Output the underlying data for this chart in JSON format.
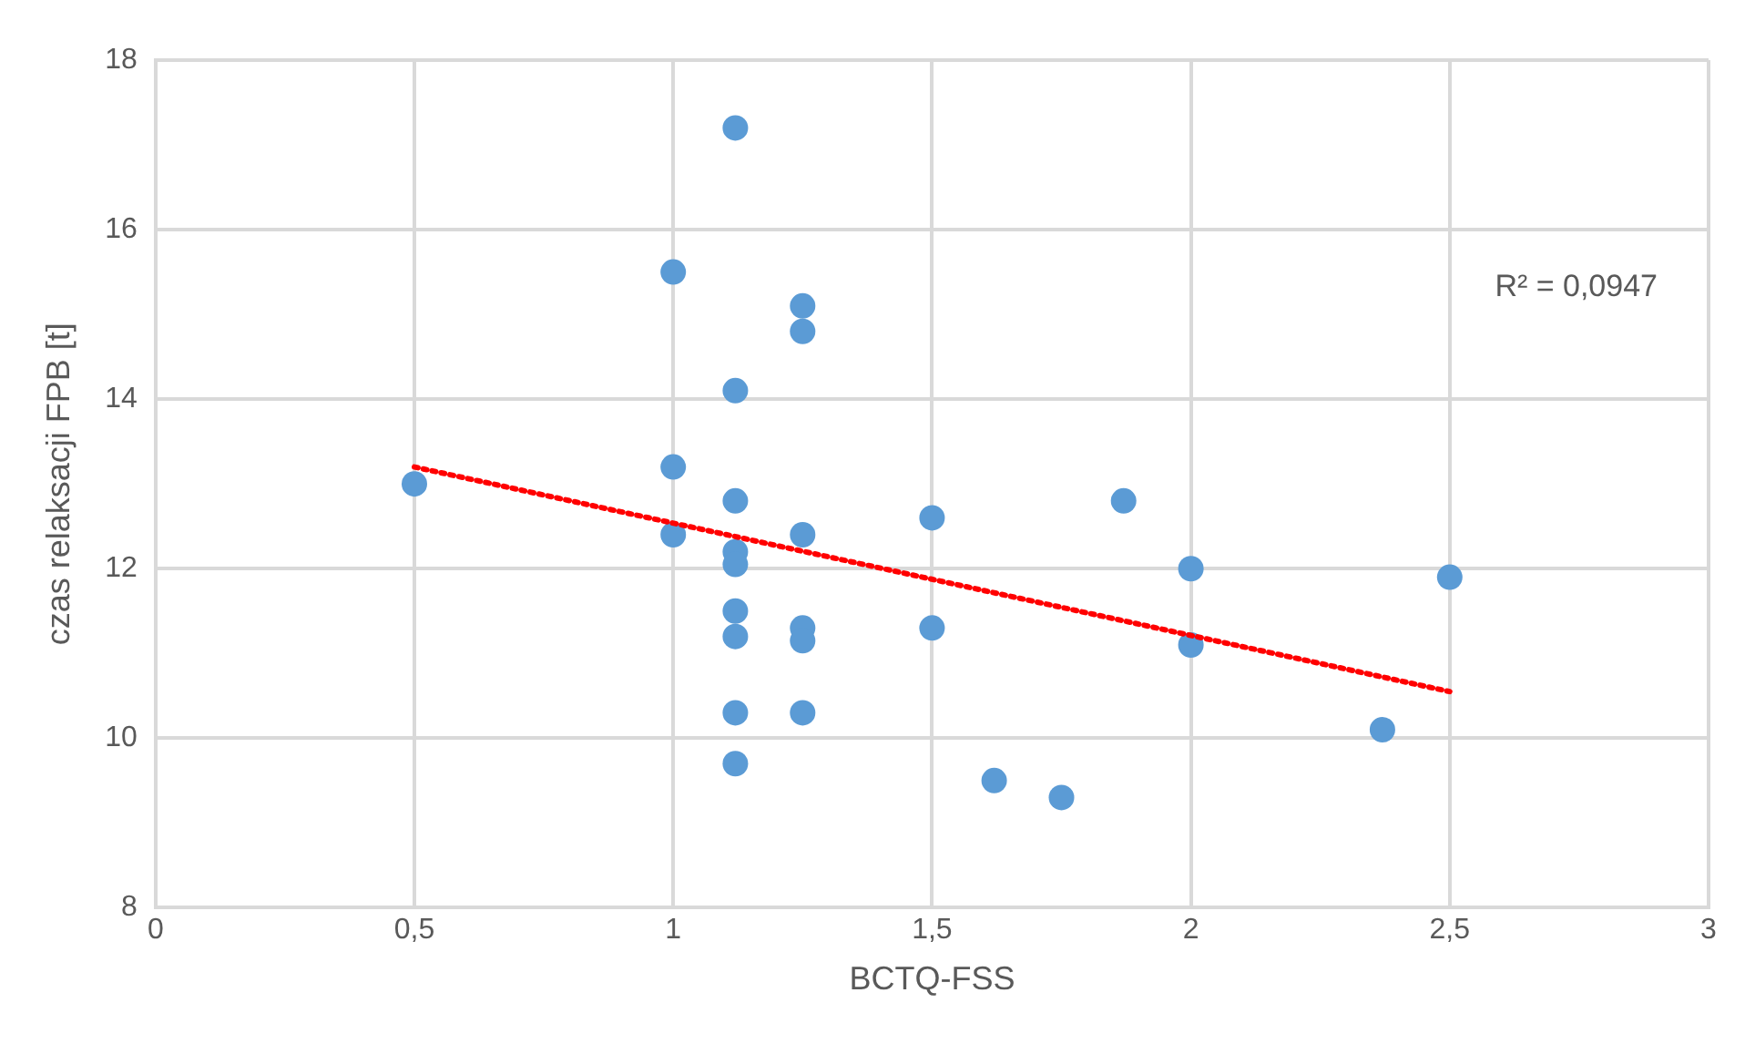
{
  "chart_data": {
    "type": "scatter",
    "xlabel": "BCTQ-FSS",
    "ylabel": "czas relaksacji FPB [t]",
    "xlim": [
      0,
      3
    ],
    "xticks": [
      0,
      {
        "value": 0.5,
        "label": "0,5"
      },
      1,
      {
        "value": 1.5,
        "label": "1,5"
      },
      2,
      {
        "value": 2.5,
        "label": "2,5"
      },
      3
    ],
    "ylim": [
      8,
      18
    ],
    "yticks": [
      8,
      10,
      12,
      14,
      16,
      18
    ],
    "grid": true,
    "legend": false,
    "marker": "circle",
    "annotations": [
      "R² = 0,0947"
    ],
    "series": [
      {
        "color": "#5b9bd5",
        "x": [
          0.5,
          1,
          1,
          1,
          1.12,
          1.12,
          1.12,
          1.12,
          1.12,
          1.12,
          1.12,
          1.12,
          1.12,
          1.25,
          1.25,
          1.25,
          1.25,
          1.25,
          1.25,
          1.5,
          1.5,
          1.62,
          1.75,
          1.87,
          2,
          2,
          2.37,
          2.5
        ],
        "values": [
          13.0,
          15.5,
          13.2,
          12.4,
          17.2,
          14.1,
          12.8,
          12.2,
          12.05,
          11.5,
          11.2,
          10.3,
          9.7,
          15.1,
          14.8,
          12.4,
          11.3,
          11.15,
          10.3,
          12.6,
          11.3,
          9.5,
          9.3,
          12.8,
          12.0,
          11.1,
          10.1,
          11.9
        ]
      },
      {
        "type": "line",
        "color": "#ff0000",
        "line_style": "dotted",
        "marker": "none",
        "x": [
          0.5,
          2.5
        ],
        "values": [
          13.2,
          10.55
        ]
      }
    ]
  }
}
